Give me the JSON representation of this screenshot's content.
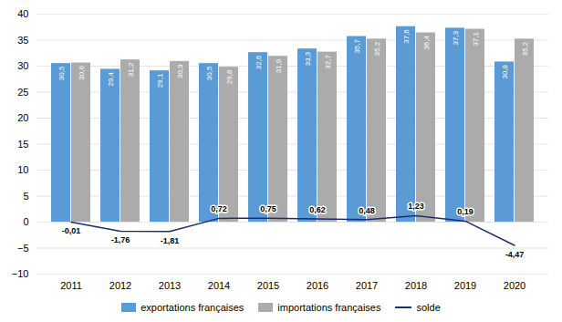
{
  "chart_data": {
    "type": "bar",
    "categories": [
      "2011",
      "2012",
      "2013",
      "2014",
      "2015",
      "2016",
      "2017",
      "2018",
      "2019",
      "2020"
    ],
    "series": [
      {
        "name": "exportations françaises",
        "type": "bar",
        "color": "#5B9BD5",
        "values": [
          30.5,
          29.4,
          29.1,
          30.5,
          32.6,
          33.3,
          35.7,
          37.6,
          37.3,
          30.8
        ],
        "value_labels": [
          "30,5",
          "29,4",
          "29,1",
          "30,5",
          "32,6",
          "33,3",
          "35,7",
          "37,6",
          "37,3",
          "30,8"
        ]
      },
      {
        "name": "importations françaises",
        "type": "bar",
        "color": "#ABABAB",
        "values": [
          30.6,
          31.2,
          30.9,
          29.8,
          31.9,
          32.7,
          35.2,
          36.4,
          37.1,
          35.2
        ],
        "value_labels": [
          "30,6",
          "31,2",
          "30,9",
          "29,8",
          "31,9",
          "32,7",
          "35,2",
          "36,4",
          "37,1",
          "35,2"
        ]
      },
      {
        "name": "solde",
        "type": "line",
        "color": "#1F2D6E",
        "values": [
          -0.01,
          -1.76,
          -1.81,
          0.72,
          0.75,
          0.62,
          0.48,
          1.23,
          0.19,
          -4.47
        ],
        "value_labels": [
          "-0,01",
          "-1,76",
          "-1,81",
          "0,72",
          "0,75",
          "0,62",
          "0,48",
          "1,23",
          "0,19",
          "-4,47"
        ]
      }
    ],
    "ylim": [
      -10,
      40
    ],
    "yticks": [
      -10,
      -5,
      0,
      5,
      10,
      15,
      20,
      25,
      30,
      35,
      40
    ],
    "grid": true,
    "legend": "bottom",
    "data_labels": true
  }
}
